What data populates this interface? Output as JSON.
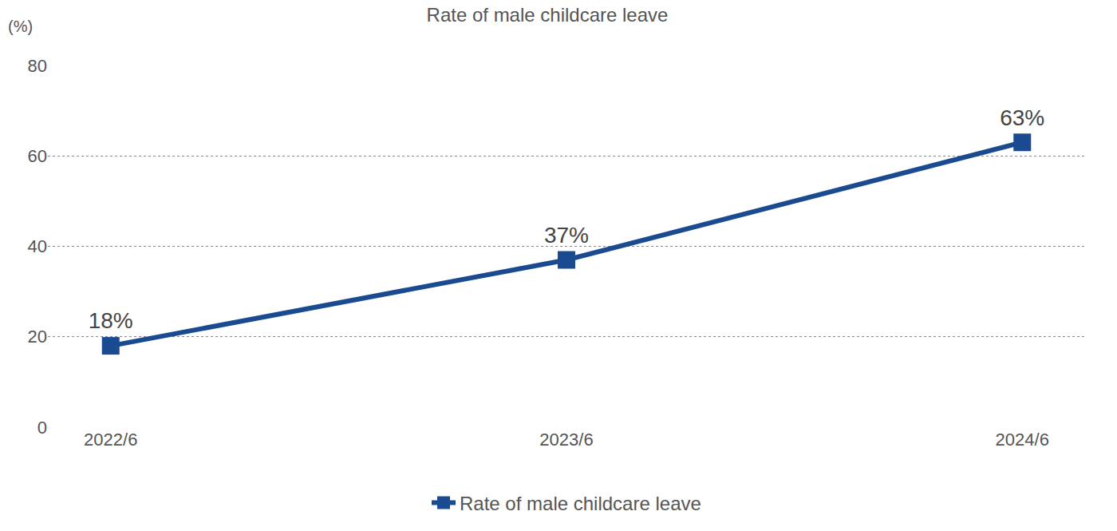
{
  "chart_data": {
    "type": "line",
    "title": "Rate of male childcare leave",
    "y_label": "(%)",
    "categories": [
      "2022/6",
      "2023/6",
      "2024/6"
    ],
    "series": [
      {
        "name": "Rate of male childcare leave",
        "color": "#1a4a8f",
        "values": [
          18,
          37,
          63
        ],
        "value_labels": [
          "18%",
          "37%",
          "63%"
        ],
        "marker": "square"
      }
    ],
    "ylim": [
      0,
      80
    ],
    "yticks": [
      0,
      20,
      40,
      60,
      80
    ],
    "grid": true,
    "legend": "bottom",
    "data_labels": true
  }
}
